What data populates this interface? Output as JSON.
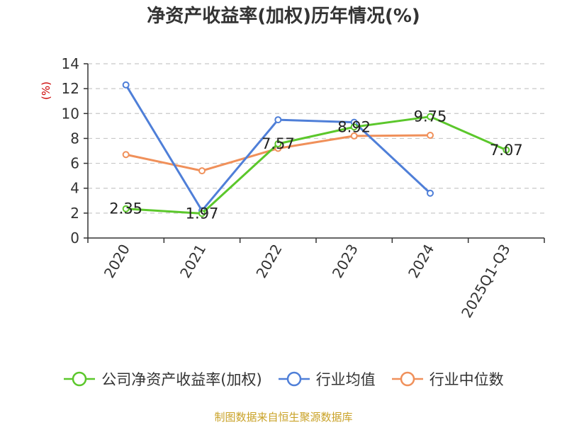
{
  "title": "净资产收益率(加权)历年情况(%)",
  "footer": "制图数据来自恒生聚源数据库",
  "chart_data": {
    "type": "line",
    "title": "净资产收益率(加权)历年情况(%)",
    "ylabel": "(%)",
    "xlabel": "",
    "categories": [
      "2020",
      "2021",
      "2022",
      "2023",
      "2024",
      "2025Q1-Q3"
    ],
    "ylim": [
      0,
      14
    ],
    "yticks": [
      0,
      2,
      4,
      6,
      8,
      10,
      12,
      14
    ],
    "grid": true,
    "legend_position": "bottom",
    "series": [
      {
        "name": "公司净资产收益率(加权)",
        "color": "#5bc72b",
        "values": [
          2.35,
          1.97,
          7.57,
          8.92,
          9.75,
          7.07
        ],
        "labels": [
          "2.35",
          "1.97",
          "7.57",
          "8.92",
          "9.75",
          "7.07"
        ]
      },
      {
        "name": "行业均值",
        "color": "#4f7fd8",
        "values": [
          12.3,
          2.2,
          9.5,
          9.3,
          3.6,
          null
        ]
      },
      {
        "name": "行业中位数",
        "color": "#f0905a",
        "values": [
          6.7,
          5.4,
          7.2,
          8.2,
          8.25,
          null
        ]
      }
    ]
  }
}
